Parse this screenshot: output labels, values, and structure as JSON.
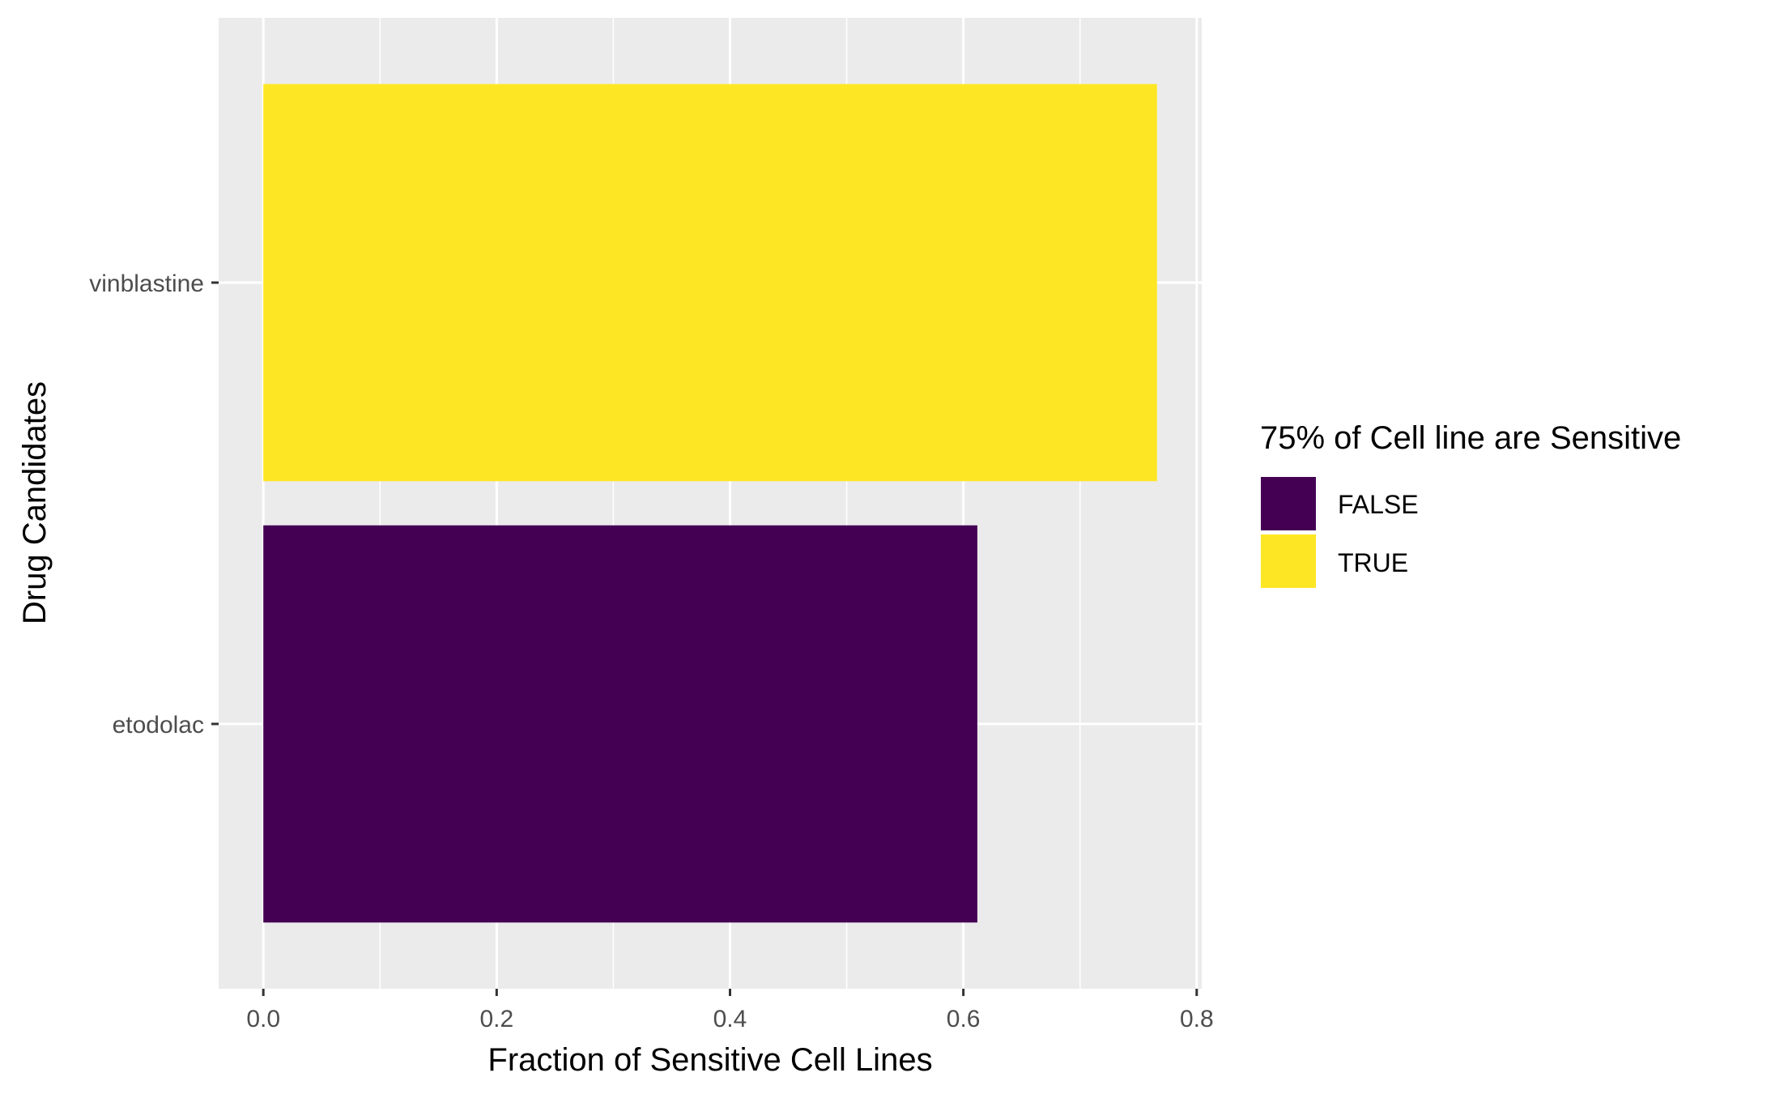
{
  "chart_data": {
    "type": "bar",
    "orientation": "horizontal",
    "categories": [
      "etodolac",
      "vinblastine"
    ],
    "values": [
      0.612,
      0.766
    ],
    "sensitive_flags": [
      "FALSE",
      "TRUE"
    ],
    "xlabel": "Fraction of Sensitive Cell Lines",
    "ylabel": "Drug Candidates",
    "xlim": [
      -0.0383,
      0.8043
    ],
    "x_ticks": [
      0.0,
      0.2,
      0.4,
      0.6,
      0.8
    ],
    "x_tick_labels": [
      "0.0",
      "0.2",
      "0.4",
      "0.6",
      "0.8"
    ],
    "grid": true,
    "legend": {
      "title": "75% of Cell line are Sensitive",
      "position": "right",
      "entries": [
        {
          "label": "FALSE",
          "color": "#440154"
        },
        {
          "label": "TRUE",
          "color": "#FDE725"
        }
      ]
    },
    "colors": {
      "panel_background": "#EBEBEB",
      "grid": "#FFFFFF"
    }
  }
}
